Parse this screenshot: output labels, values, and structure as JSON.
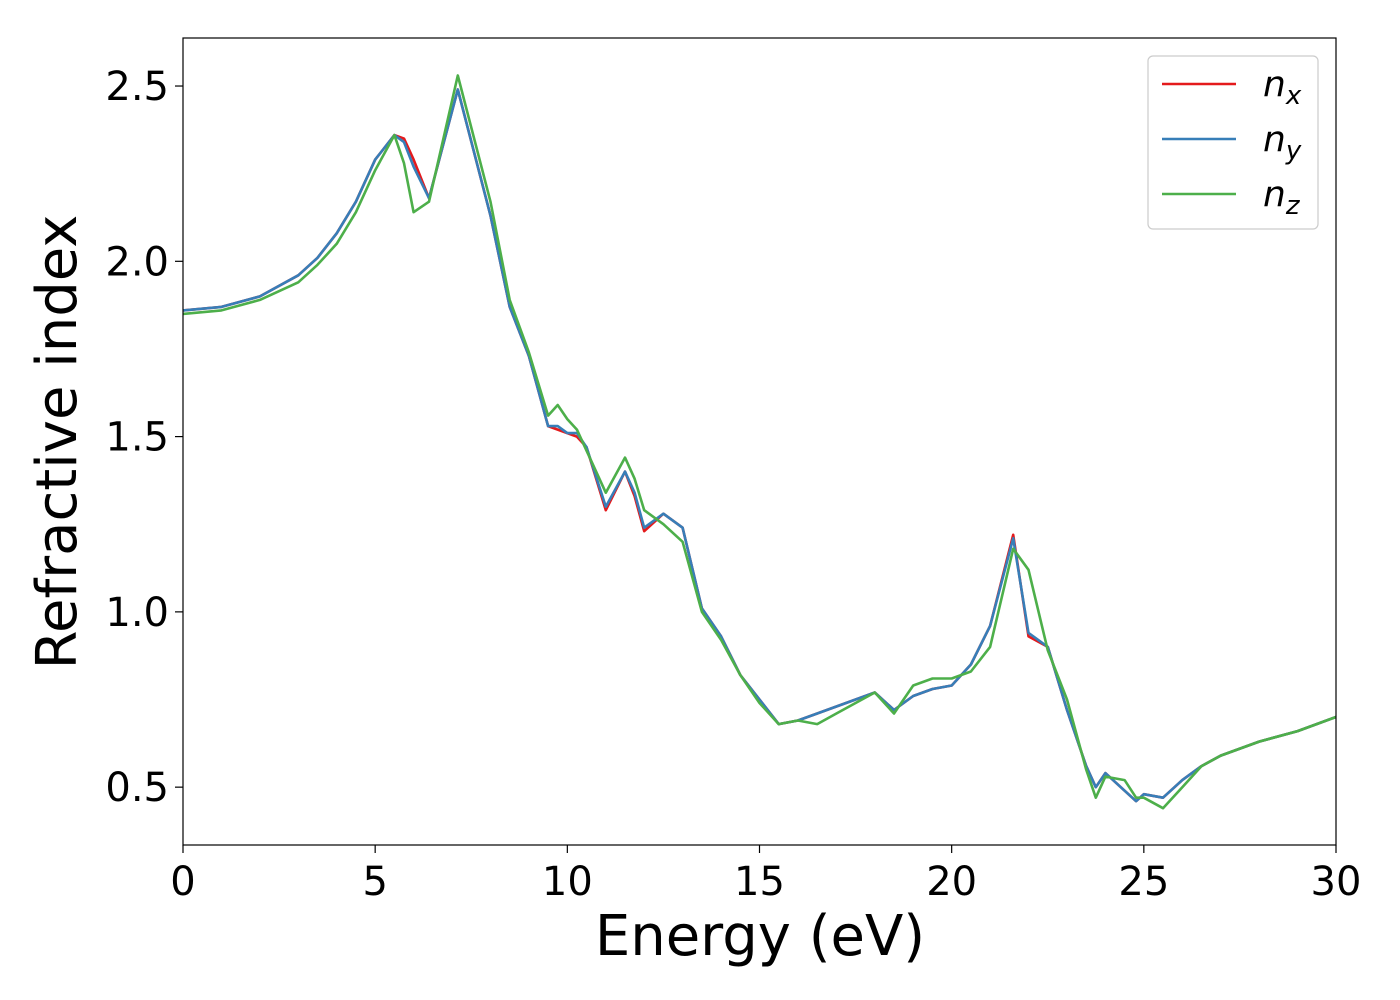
{
  "chart_data": {
    "type": "line",
    "xlabel": "Energy (eV)",
    "ylabel": "Refractive index",
    "x": [
      0,
      1,
      2,
      3,
      3.5,
      4,
      4.5,
      5,
      5.5,
      5.75,
      6,
      6.4,
      7.15,
      8,
      8.5,
      9,
      9.5,
      9.75,
      10,
      10.25,
      10.5,
      11,
      11.5,
      11.75,
      12,
      12.5,
      13,
      13.5,
      14,
      14.5,
      15,
      15.5,
      16,
      16.5,
      17,
      17.5,
      18,
      18.5,
      19,
      19.5,
      20,
      20.5,
      21,
      21.6,
      22,
      22.5,
      23,
      23.5,
      23.75,
      24,
      24.5,
      24.8,
      25,
      25.5,
      26,
      26.5,
      27,
      27.5,
      28,
      29,
      30
    ],
    "series": [
      {
        "name": "nx",
        "color": "#e41a1c",
        "values": [
          1.86,
          1.87,
          1.9,
          1.96,
          2.01,
          2.08,
          2.17,
          2.29,
          2.36,
          2.35,
          2.29,
          2.18,
          2.49,
          2.13,
          1.87,
          1.73,
          1.53,
          1.52,
          1.51,
          1.5,
          1.47,
          1.29,
          1.4,
          1.33,
          1.23,
          1.28,
          1.24,
          1.01,
          0.93,
          0.82,
          0.75,
          0.68,
          0.69,
          0.71,
          0.73,
          0.75,
          0.77,
          0.72,
          0.76,
          0.78,
          0.79,
          0.85,
          0.96,
          1.22,
          0.93,
          0.9,
          0.72,
          0.56,
          0.5,
          0.54,
          0.49,
          0.46,
          0.48,
          0.47,
          0.52,
          0.56,
          0.59,
          0.61,
          0.63,
          0.66,
          0.7
        ]
      },
      {
        "name": "ny",
        "color": "#377eb8",
        "values": [
          1.86,
          1.87,
          1.9,
          1.96,
          2.01,
          2.08,
          2.17,
          2.29,
          2.36,
          2.34,
          2.27,
          2.18,
          2.49,
          2.13,
          1.87,
          1.73,
          1.53,
          1.53,
          1.51,
          1.51,
          1.47,
          1.3,
          1.4,
          1.34,
          1.24,
          1.28,
          1.24,
          1.01,
          0.93,
          0.82,
          0.75,
          0.68,
          0.69,
          0.71,
          0.73,
          0.75,
          0.77,
          0.72,
          0.76,
          0.78,
          0.79,
          0.85,
          0.96,
          1.21,
          0.94,
          0.9,
          0.72,
          0.56,
          0.5,
          0.54,
          0.49,
          0.46,
          0.48,
          0.47,
          0.52,
          0.56,
          0.59,
          0.61,
          0.63,
          0.66,
          0.7
        ]
      },
      {
        "name": "nz",
        "color": "#4daf4a",
        "values": [
          1.85,
          1.86,
          1.89,
          1.94,
          1.99,
          2.05,
          2.14,
          2.26,
          2.36,
          2.28,
          2.14,
          2.17,
          2.53,
          2.17,
          1.89,
          1.74,
          1.56,
          1.59,
          1.55,
          1.52,
          1.46,
          1.34,
          1.44,
          1.38,
          1.29,
          1.25,
          1.2,
          1.0,
          0.92,
          0.82,
          0.74,
          0.68,
          0.69,
          0.68,
          0.71,
          0.74,
          0.77,
          0.71,
          0.79,
          0.81,
          0.81,
          0.83,
          0.9,
          1.18,
          1.12,
          0.89,
          0.75,
          0.55,
          0.47,
          0.53,
          0.52,
          0.47,
          0.47,
          0.44,
          0.5,
          0.56,
          0.59,
          0.61,
          0.63,
          0.66,
          0.7
        ]
      }
    ],
    "xlim": [
      0,
      30
    ],
    "ylim": [
      0.335,
      2.637
    ],
    "xticks": [
      0,
      5,
      10,
      15,
      20,
      25,
      30
    ],
    "yticks": [
      0.5,
      {
        "value": 1,
        "label": "1.0"
      },
      1.5,
      {
        "value": 2,
        "label": "2.0"
      },
      2.5
    ],
    "legend": "upper right",
    "grid": false
  }
}
